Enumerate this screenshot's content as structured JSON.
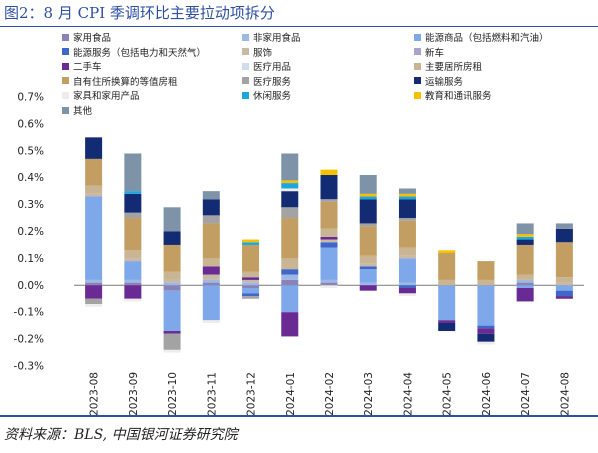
{
  "title": "图2：8 月 CPI 季调环比主要拉动项拆分",
  "source": "资料来源：BLS,  中国银河证券研究院",
  "chart_data": {
    "type": "bar",
    "stacked": true,
    "ylim": [
      -0.3,
      0.7
    ],
    "yticks": [
      -0.3,
      -0.2,
      -0.1,
      0.0,
      0.1,
      0.2,
      0.3,
      0.4,
      0.5,
      0.6,
      0.7
    ],
    "ytick_labels": [
      "-0.3%",
      "-0.2%",
      "-0.1%",
      "0.0%",
      "0.1%",
      "0.2%",
      "0.3%",
      "0.4%",
      "0.5%",
      "0.6%",
      "0.7%"
    ],
    "categories": [
      "2023-08",
      "2023-09",
      "2023-10",
      "2023-11",
      "2023-12",
      "2024-01",
      "2024-02",
      "2024-03",
      "2024-04",
      "2024-05",
      "2024-06",
      "2024-07",
      "2024-08"
    ],
    "legend_position": "top",
    "series": [
      {
        "name": "家用食品",
        "color": "#8b83b8",
        "values": [
          0.01,
          0.01,
          -0.02,
          0.01,
          -0.01,
          0.02,
          0.01,
          0.0,
          0.0,
          0.0,
          0.0,
          0.01,
          0.0
        ]
      },
      {
        "name": "非家用食品",
        "color": "#9db8e4",
        "values": [
          0.01,
          0.01,
          0.01,
          0.01,
          0.01,
          0.02,
          0.01,
          0.01,
          0.01,
          0.0,
          0.0,
          0.01,
          0.0
        ]
      },
      {
        "name": "能源商品（包括燃料和汽油）",
        "color": "#7ea8ea",
        "values": [
          0.31,
          0.07,
          -0.15,
          -0.13,
          -0.02,
          -0.1,
          0.12,
          0.05,
          0.09,
          -0.13,
          -0.15,
          -0.01,
          -0.02
        ]
      },
      {
        "name": "能源服务（包括电力和天然气）",
        "color": "#3f66c9",
        "values": [
          0.0,
          0.0,
          0.0,
          0.0,
          -0.01,
          0.02,
          0.02,
          0.01,
          -0.01,
          0.0,
          -0.01,
          0.0,
          -0.02
        ]
      },
      {
        "name": "服饰",
        "color": "#c7b9a6",
        "values": [
          0.01,
          0.01,
          0.01,
          0.02,
          0.01,
          0.0,
          0.01,
          0.01,
          0.01,
          0.0,
          0.0,
          0.0,
          0.01
        ]
      },
      {
        "name": "新车",
        "color": "#a9a2cc",
        "values": [
          0.0,
          0.0,
          0.0,
          0.0,
          0.0,
          0.0,
          0.0,
          0.0,
          0.0,
          0.0,
          0.0,
          0.0,
          0.0
        ]
      },
      {
        "name": "二手车",
        "color": "#6a2a94",
        "values": [
          -0.05,
          -0.05,
          -0.01,
          0.03,
          0.01,
          -0.09,
          0.01,
          -0.02,
          -0.02,
          -0.01,
          -0.02,
          -0.05,
          -0.01
        ]
      },
      {
        "name": "医疗用品",
        "color": "#cfdcee",
        "values": [
          0.0,
          0.0,
          0.0,
          0.0,
          0.0,
          0.0,
          0.0,
          0.0,
          0.0,
          0.0,
          0.0,
          0.0,
          0.0
        ]
      },
      {
        "name": "主要居所房租",
        "color": "#c9b594",
        "values": [
          0.03,
          0.03,
          0.03,
          0.03,
          0.02,
          0.04,
          0.03,
          0.03,
          0.03,
          0.02,
          0.02,
          0.02,
          0.02
        ]
      },
      {
        "name": "自有住所换算的等值房租",
        "color": "#c39e63",
        "values": [
          0.1,
          0.12,
          0.1,
          0.13,
          0.1,
          0.15,
          0.1,
          0.11,
          0.1,
          0.1,
          0.07,
          0.11,
          0.13
        ]
      },
      {
        "name": "医疗服务",
        "color": "#a3a3a3",
        "values": [
          -0.02,
          0.02,
          -0.06,
          0.03,
          -0.01,
          0.04,
          0.01,
          0.01,
          0.01,
          0.0,
          0.0,
          0.0,
          0.0
        ]
      },
      {
        "name": "运输服务",
        "color": "#132b73",
        "values": [
          0.08,
          0.07,
          0.05,
          0.06,
          0.0,
          0.06,
          0.09,
          0.09,
          0.07,
          -0.03,
          -0.03,
          0.02,
          0.05
        ]
      },
      {
        "name": "家具和家用产品",
        "color": "#f0ecec",
        "values": [
          -0.01,
          -0.01,
          -0.01,
          -0.01,
          0.0,
          0.01,
          -0.01,
          0.0,
          -0.01,
          0.0,
          -0.01,
          0.0,
          0.0
        ]
      },
      {
        "name": "休闲服务",
        "color": "#1aa7dd",
        "values": [
          0.0,
          0.01,
          0.0,
          0.0,
          0.01,
          0.02,
          0.0,
          0.01,
          0.01,
          0.0,
          0.0,
          0.01,
          0.0
        ]
      },
      {
        "name": "教育和通讯服务",
        "color": "#f5c000",
        "values": [
          0.0,
          0.0,
          0.0,
          0.0,
          0.01,
          0.01,
          0.02,
          0.01,
          0.01,
          0.01,
          0.0,
          0.01,
          0.0
        ]
      },
      {
        "name": "其他",
        "color": "#7f93a8",
        "values": [
          0.0,
          0.14,
          0.09,
          0.03,
          0.0,
          0.1,
          0.0,
          0.07,
          0.02,
          0.0,
          0.0,
          0.04,
          0.02
        ]
      }
    ]
  }
}
